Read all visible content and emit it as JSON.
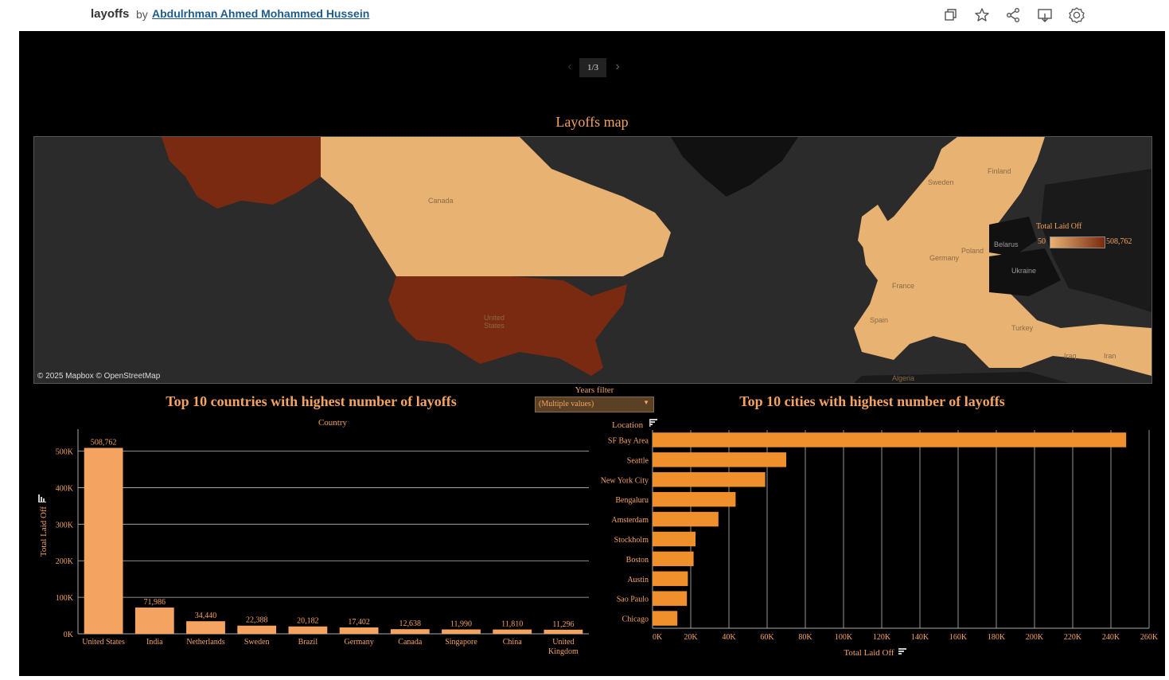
{
  "header": {
    "workbook_title": "layoffs",
    "by": "by",
    "author": "Abdulrhman Ahmed Mohammed Hussein",
    "icons": [
      "copy-icon",
      "star-icon",
      "share-icon",
      "download-icon",
      "badge-icon"
    ]
  },
  "pager": {
    "label": "1/3"
  },
  "map": {
    "title": "Layoffs map",
    "attribution": "© 2025 Mapbox  © OpenStreetMap",
    "labels": [
      "Canada",
      "United States",
      "Finland",
      "Belarus",
      "Ukraine",
      "Poland",
      "Sweden",
      "Germany",
      "France",
      "Spain",
      "Turkey",
      "Iraq",
      "Iran",
      "Algeria"
    ],
    "legend": {
      "title": "Total Laid Off",
      "min": "50",
      "max": "508,762"
    },
    "colors": {
      "low": "#e8b272",
      "high": "#7a2a10",
      "water": "#2b2b2b"
    }
  },
  "filter": {
    "label": "Years filter",
    "value": "(Multiple values)"
  },
  "countries_chart": {
    "title": "Top 10 countries with highest number of layoffs",
    "column_header": "Country"
  },
  "cities_chart": {
    "title": "Top 10 cities with highest number of layoffs",
    "row_header": "Location"
  },
  "chart_data": [
    {
      "type": "bar",
      "title": "Top 10 countries with highest number of layoffs",
      "xlabel": "Country",
      "ylabel": "Total Laid Off",
      "categories": [
        "United States",
        "India",
        "Netherlands",
        "Sweden",
        "Brazil",
        "Germany",
        "Canada",
        "Singapore",
        "China",
        "United Kingdom"
      ],
      "values": [
        508762,
        71986,
        34440,
        22388,
        20182,
        17402,
        12638,
        11990,
        11810,
        11296
      ],
      "value_labels": [
        "508,762",
        "71,986",
        "34,440",
        "22,388",
        "20,182",
        "17,402",
        "12,638",
        "11,990",
        "11,810",
        "11,296"
      ],
      "ylim": [
        0,
        560000
      ],
      "yticks": [
        0,
        100000,
        200000,
        300000,
        400000,
        500000
      ],
      "ytick_labels": [
        "0K",
        "100K",
        "200K",
        "300K",
        "400K",
        "500K"
      ],
      "color": "#f4a460",
      "grid": true
    },
    {
      "type": "bar",
      "orientation": "horizontal",
      "title": "Top 10 cities with highest number of layoffs",
      "xlabel": "Total Laid Off",
      "ylabel": "Location",
      "categories": [
        "SF Bay Area",
        "Seattle",
        "New York City",
        "Bengaluru",
        "Amsterdam",
        "Stockholm",
        "Boston",
        "Austin",
        "Sao Paulo",
        "Chicago"
      ],
      "values": [
        248000,
        70000,
        59000,
        43500,
        34500,
        22500,
        21500,
        18500,
        18000,
        13000
      ],
      "xlim": [
        0,
        260000
      ],
      "xticks": [
        0,
        20000,
        40000,
        60000,
        80000,
        100000,
        120000,
        140000,
        160000,
        180000,
        200000,
        220000,
        240000,
        260000
      ],
      "xtick_labels": [
        "0K",
        "20K",
        "40K",
        "60K",
        "80K",
        "100K",
        "120K",
        "140K",
        "160K",
        "180K",
        "200K",
        "220K",
        "240K",
        "260K"
      ],
      "color": "#f0902c",
      "grid": true
    }
  ]
}
